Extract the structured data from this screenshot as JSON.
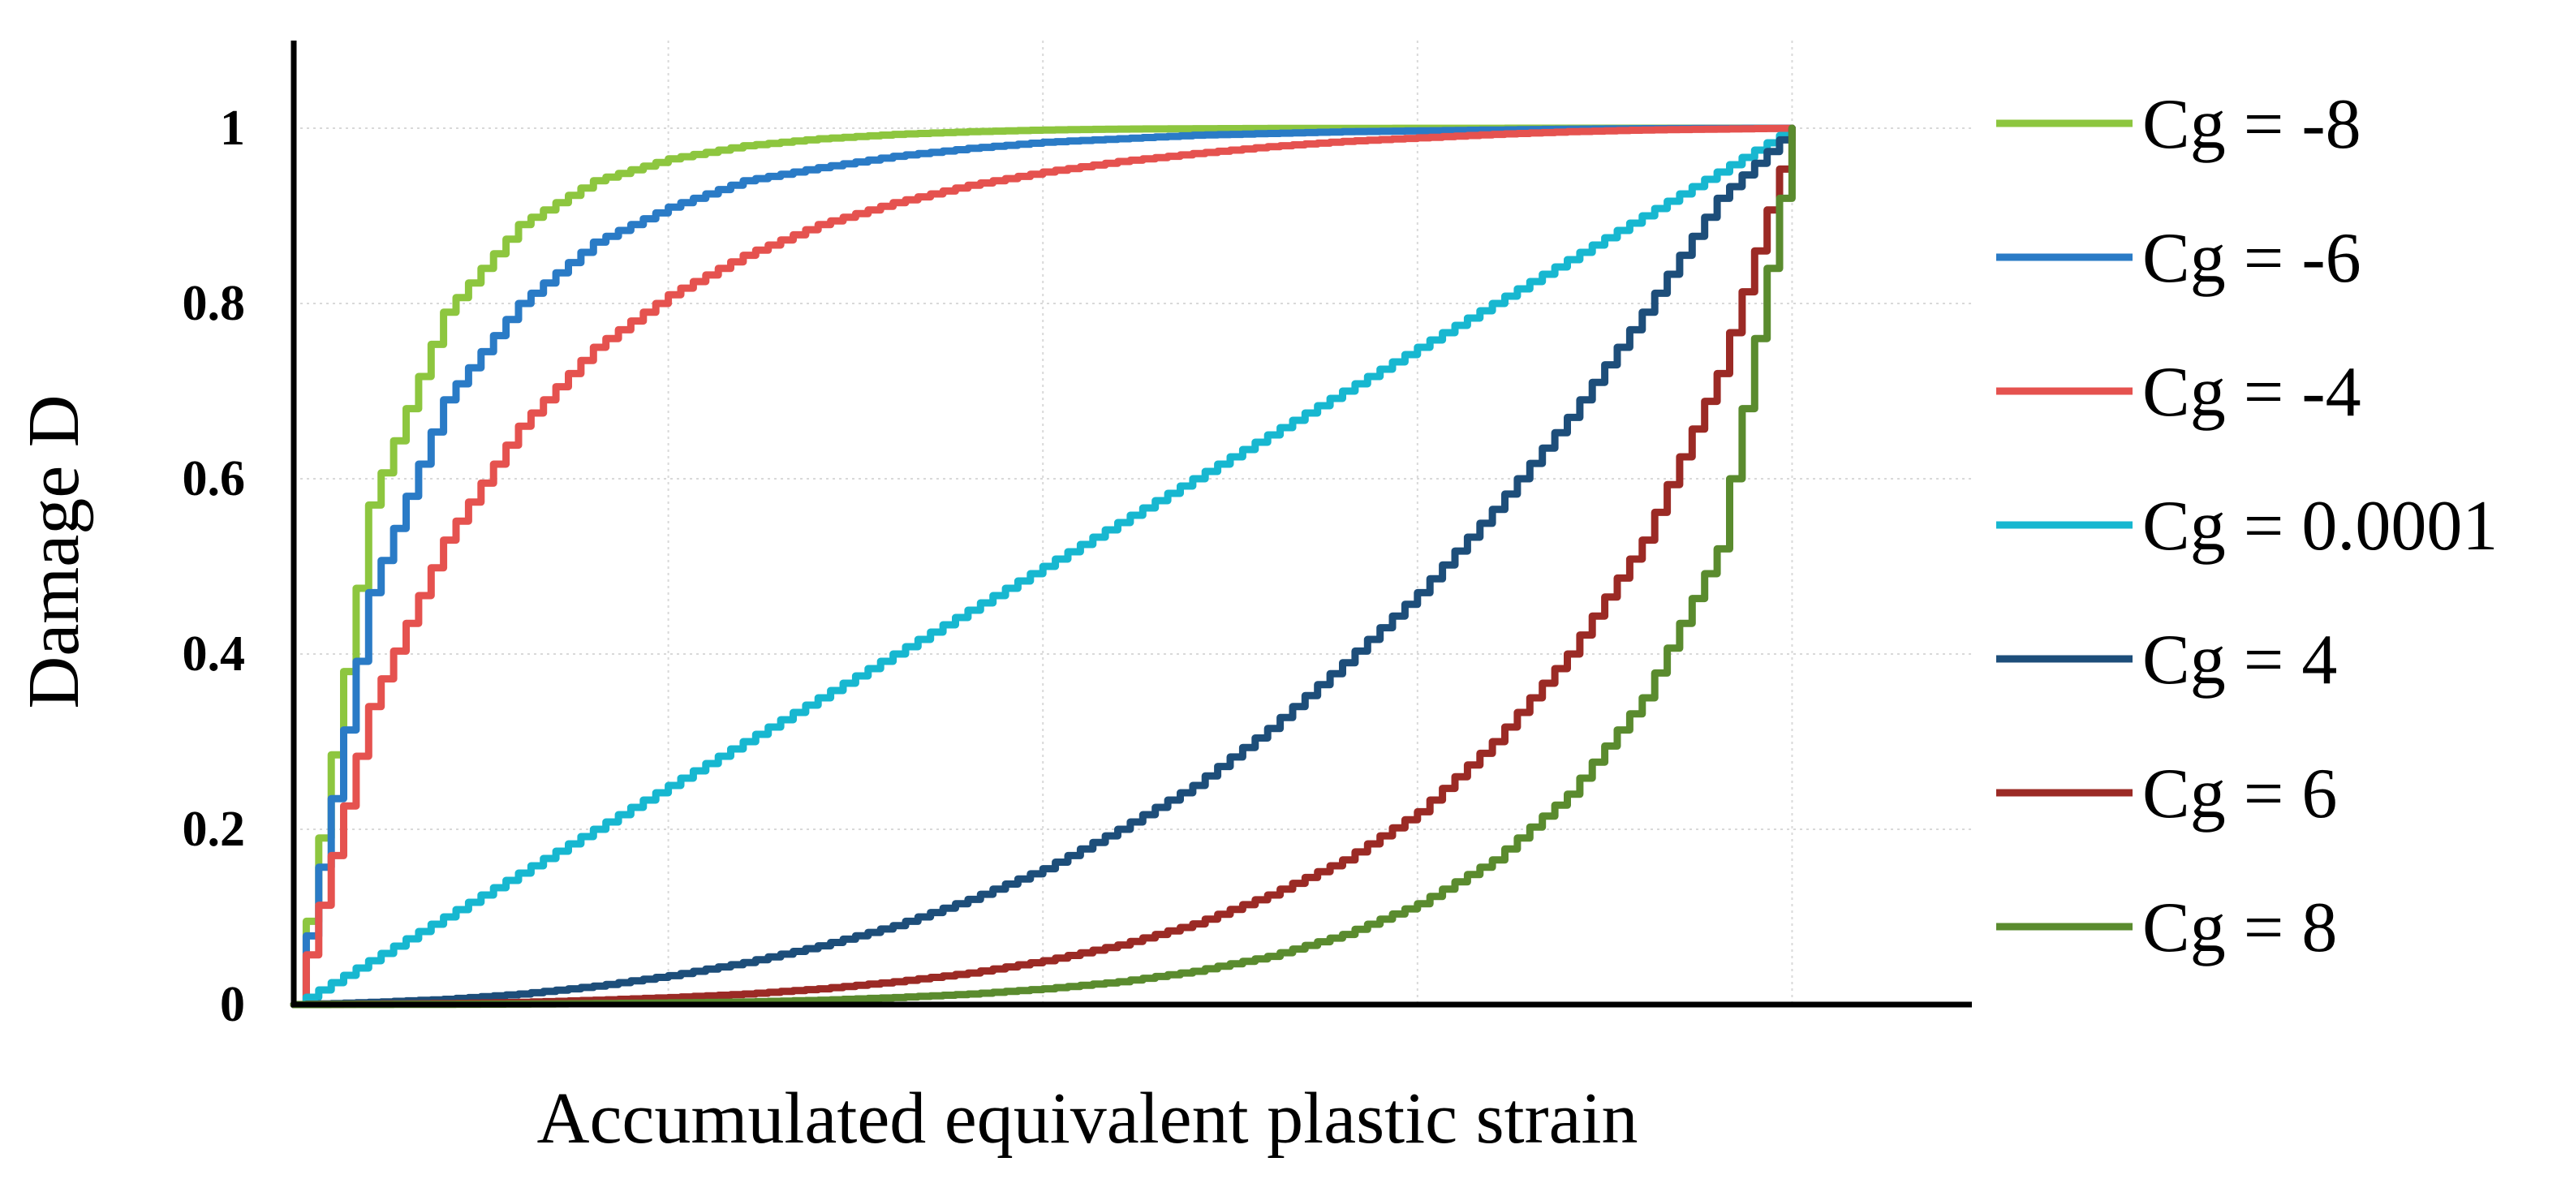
{
  "chart_data": {
    "type": "line",
    "title": "",
    "xlabel": "Accumulated equivalent plastic strain",
    "ylabel": "Damage D",
    "x_ticks_shown": false,
    "xlim": [
      0,
      1.12
    ],
    "ylim": [
      0,
      1.1
    ],
    "y_ticks": [
      "0",
      "0.2",
      "0.4",
      "0.6",
      "0.8",
      "1"
    ],
    "y_tick_values": [
      0,
      0.2,
      0.4,
      0.6,
      0.8,
      1
    ],
    "grid": true,
    "legend_position": "right",
    "x": [
      0,
      0.05,
      0.1,
      0.15,
      0.2,
      0.25,
      0.3,
      0.35,
      0.4,
      0.45,
      0.5,
      0.55,
      0.6,
      0.65,
      0.7,
      0.75,
      0.8,
      0.85,
      0.9,
      0.95,
      1.0
    ],
    "series": [
      {
        "name": "Cg = -8",
        "color": "#8dc63f",
        "values": [
          0,
          0.57,
          0.79,
          0.89,
          0.94,
          0.965,
          0.98,
          0.988,
          0.993,
          0.996,
          0.998,
          0.999,
          0.9994,
          0.9997,
          0.9998,
          0.9999,
          0.99995,
          0.99998,
          0.99999,
          1,
          1
        ]
      },
      {
        "name": "Cg = -6",
        "color": "#2a7bc6",
        "values": [
          0,
          0.47,
          0.69,
          0.8,
          0.87,
          0.91,
          0.94,
          0.955,
          0.968,
          0.977,
          0.984,
          0.988,
          0.992,
          0.994,
          0.996,
          0.997,
          0.998,
          0.999,
          0.9995,
          0.9998,
          1
        ]
      },
      {
        "name": "Cg = -4",
        "color": "#e5524f",
        "values": [
          0,
          0.34,
          0.53,
          0.66,
          0.75,
          0.81,
          0.855,
          0.89,
          0.915,
          0.935,
          0.95,
          0.962,
          0.971,
          0.979,
          0.985,
          0.989,
          0.993,
          0.996,
          0.998,
          0.999,
          1
        ]
      },
      {
        "name": "Cg = 0.0001",
        "color": "#17b7d0",
        "values": [
          0,
          0.05,
          0.1,
          0.15,
          0.2,
          0.25,
          0.3,
          0.35,
          0.4,
          0.45,
          0.5,
          0.55,
          0.6,
          0.65,
          0.7,
          0.75,
          0.8,
          0.85,
          0.9,
          0.95,
          1
        ]
      },
      {
        "name": "Cg = 4",
        "color": "#1d4e7a",
        "values": [
          0,
          0.0025,
          0.006,
          0.012,
          0.021,
          0.033,
          0.048,
          0.067,
          0.09,
          0.12,
          0.155,
          0.2,
          0.25,
          0.315,
          0.39,
          0.47,
          0.565,
          0.67,
          0.79,
          0.92,
          1
        ]
      },
      {
        "name": "Cg = 6",
        "color": "#9b2a25",
        "values": [
          0,
          0.0005,
          0.0012,
          0.0025,
          0.005,
          0.008,
          0.012,
          0.018,
          0.026,
          0.036,
          0.05,
          0.068,
          0.092,
          0.125,
          0.165,
          0.22,
          0.3,
          0.4,
          0.53,
          0.72,
          1
        ]
      },
      {
        "name": "Cg = 8",
        "color": "#5a8b2e",
        "values": [
          0,
          0.0001,
          0.0003,
          0.0006,
          0.0011,
          0.0019,
          0.003,
          0.005,
          0.008,
          0.012,
          0.018,
          0.026,
          0.038,
          0.055,
          0.08,
          0.115,
          0.165,
          0.24,
          0.35,
          0.52,
          1
        ]
      }
    ]
  }
}
